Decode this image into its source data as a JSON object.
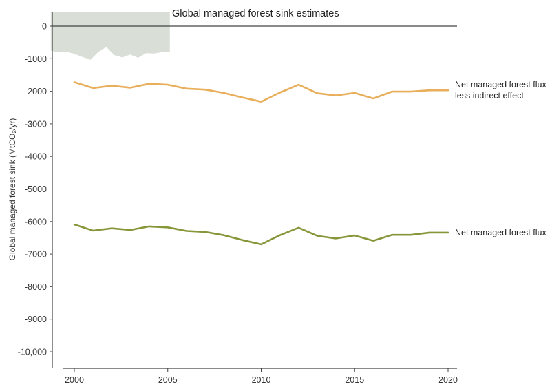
{
  "chart_data": {
    "type": "line",
    "title": "Global managed forest sink estimates",
    "xlabel": "",
    "ylabel": "Global managed forest sink (MtCO₂/yr)",
    "xlim": [
      1999,
      2020.5
    ],
    "ylim": [
      -10300,
      250
    ],
    "x_ticks": [
      2000,
      2005,
      2010,
      2015,
      2020
    ],
    "y_ticks": [
      {
        "value": 0,
        "label": "0"
      },
      {
        "value": -1000,
        "label": "-1000"
      },
      {
        "value": -2000,
        "label": "-2000"
      },
      {
        "value": -3000,
        "label": "-3000"
      },
      {
        "value": -4000,
        "label": "-4000"
      },
      {
        "value": -5000,
        "label": "-5000"
      },
      {
        "value": -6000,
        "label": "-6000"
      },
      {
        "value": -7000,
        "label": "-7000"
      },
      {
        "value": -8000,
        "label": "-8000"
      },
      {
        "value": -9000,
        "label": "-9000"
      },
      {
        "value": -10000,
        "label": "-10,000"
      }
    ],
    "grid": false,
    "legend": "labels at line ends (right)",
    "x": [
      2000,
      2001,
      2002,
      2003,
      2004,
      2005,
      2006,
      2007,
      2008,
      2009,
      2010,
      2011,
      2012,
      2013,
      2014,
      2015,
      2016,
      2017,
      2018,
      2019,
      2020
    ],
    "series": [
      {
        "name": "Net managed forest flux less indirect effect",
        "label_lines": [
          "Net managed forest flux",
          "less indirect effect"
        ],
        "color": "#e8ae5a",
        "values": [
          -1720,
          -1900,
          -1830,
          -1890,
          -1770,
          -1800,
          -1920,
          -1950,
          -2050,
          -2190,
          -2320,
          -2040,
          -1800,
          -2060,
          -2130,
          -2050,
          -2220,
          -2010,
          -2010,
          -1970,
          -1970
        ]
      },
      {
        "name": "Net managed forest flux",
        "label_lines": [
          "Net managed forest flux"
        ],
        "color": "#86973a",
        "values": [
          -6090,
          -6280,
          -6210,
          -6260,
          -6150,
          -6180,
          -6290,
          -6320,
          -6420,
          -6570,
          -6700,
          -6420,
          -6190,
          -6440,
          -6520,
          -6430,
          -6590,
          -6410,
          -6410,
          -6340,
          -6340
        ]
      }
    ],
    "background_band": {
      "color": "#d9ded7",
      "x_range": [
        1999,
        2005
      ],
      "bottom_values": [
        -750,
        -810,
        -790,
        -850,
        -950,
        -1030,
        -790,
        -640,
        -890,
        -960,
        -870,
        -970,
        -830,
        -840,
        -800,
        -800
      ]
    }
  }
}
